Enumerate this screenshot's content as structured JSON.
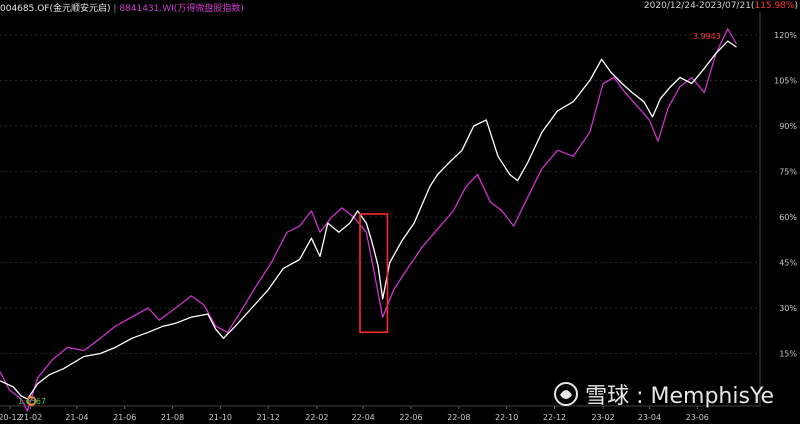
{
  "header": {
    "series1_label": "004685.OF(金元顺安元启)",
    "separator": "|",
    "series2_label": "8841431.WI(万得微盘股指数)",
    "date_range": "2020/12/24-2023/07/21",
    "change_pct": "115.98%"
  },
  "watermark": {
    "text": "雪球 : MemphisYe",
    "icon": "xueqiu-logo-icon"
  },
  "colors": {
    "background": "#000000",
    "series1": "#ffffff",
    "series2": "#cc33cc",
    "highlight": "#ff2a2a",
    "grid": "#2a2a2a",
    "axis_text": "#c8c8c8"
  },
  "chart_data": {
    "type": "line",
    "x_ticks": [
      "20-12",
      "21-02",
      "21-04",
      "21-06",
      "21-08",
      "21-10",
      "21-12",
      "22-02",
      "22-04",
      "22-06",
      "22-08",
      "22-10",
      "22-12",
      "23-02",
      "23-04",
      "23-06"
    ],
    "y_ticks": [
      "15%",
      "30%",
      "45%",
      "60%",
      "75%",
      "90%",
      "105%",
      "120%"
    ],
    "ylim": [
      0,
      125
    ],
    "start_label": "1.6567",
    "end_label": "3.9943",
    "series": [
      {
        "name": "004685.OF(金元顺安元启)",
        "color": "#ffffff",
        "points": [
          [
            "2020-12-24",
            6
          ],
          [
            "2021-01-10",
            4
          ],
          [
            "2021-01-20",
            1
          ],
          [
            "2021-01-28",
            0
          ],
          [
            "2021-02-10",
            5
          ],
          [
            "2021-02-25",
            8
          ],
          [
            "2021-03-15",
            10
          ],
          [
            "2021-04-10",
            14
          ],
          [
            "2021-05-01",
            15
          ],
          [
            "2021-05-20",
            17
          ],
          [
            "2021-06-10",
            20
          ],
          [
            "2021-07-01",
            22
          ],
          [
            "2021-07-20",
            24
          ],
          [
            "2021-08-05",
            25
          ],
          [
            "2021-08-25",
            27
          ],
          [
            "2021-09-15",
            28
          ],
          [
            "2021-09-25",
            23
          ],
          [
            "2021-10-05",
            20
          ],
          [
            "2021-10-20",
            24
          ],
          [
            "2021-11-10",
            30
          ],
          [
            "2021-12-01",
            36
          ],
          [
            "2021-12-20",
            43
          ],
          [
            "2022-01-10",
            46
          ],
          [
            "2022-01-25",
            53
          ],
          [
            "2022-02-05",
            47
          ],
          [
            "2022-02-15",
            58
          ],
          [
            "2022-03-01",
            55
          ],
          [
            "2022-03-15",
            58
          ],
          [
            "2022-03-25",
            62
          ],
          [
            "2022-04-05",
            58
          ],
          [
            "2022-04-12",
            52
          ],
          [
            "2022-04-20",
            44
          ],
          [
            "2022-04-26",
            33
          ],
          [
            "2022-05-05",
            45
          ],
          [
            "2022-05-20",
            52
          ],
          [
            "2022-06-05",
            58
          ],
          [
            "2022-06-25",
            70
          ],
          [
            "2022-07-05",
            74
          ],
          [
            "2022-07-20",
            78
          ],
          [
            "2022-08-05",
            82
          ],
          [
            "2022-08-20",
            90
          ],
          [
            "2022-09-05",
            92
          ],
          [
            "2022-09-20",
            80
          ],
          [
            "2022-10-05",
            74
          ],
          [
            "2022-10-15",
            72
          ],
          [
            "2022-10-28",
            78
          ],
          [
            "2022-11-15",
            88
          ],
          [
            "2022-12-05",
            95
          ],
          [
            "2022-12-25",
            98
          ],
          [
            "2023-01-15",
            105
          ],
          [
            "2023-01-30",
            112
          ],
          [
            "2023-02-10",
            108
          ],
          [
            "2023-02-25",
            104
          ],
          [
            "2023-03-10",
            101
          ],
          [
            "2023-03-25",
            98
          ],
          [
            "2023-04-05",
            93
          ],
          [
            "2023-04-15",
            99
          ],
          [
            "2023-04-28",
            103
          ],
          [
            "2023-05-10",
            106
          ],
          [
            "2023-05-25",
            104
          ],
          [
            "2023-06-10",
            109
          ],
          [
            "2023-06-25",
            114
          ],
          [
            "2023-07-10",
            118
          ],
          [
            "2023-07-21",
            116
          ]
        ]
      },
      {
        "name": "8841431.WI(万得微盘股指数)",
        "color": "#cc33cc",
        "points": [
          [
            "2020-12-24",
            9
          ],
          [
            "2021-01-05",
            3
          ],
          [
            "2021-01-20",
            0
          ],
          [
            "2021-01-28",
            -4
          ],
          [
            "2021-02-10",
            7
          ],
          [
            "2021-03-01",
            13
          ],
          [
            "2021-03-20",
            17
          ],
          [
            "2021-04-10",
            16
          ],
          [
            "2021-05-01",
            20
          ],
          [
            "2021-05-20",
            24
          ],
          [
            "2021-06-10",
            27
          ],
          [
            "2021-07-01",
            30
          ],
          [
            "2021-07-15",
            26
          ],
          [
            "2021-08-05",
            30
          ],
          [
            "2021-08-25",
            34
          ],
          [
            "2021-09-10",
            31
          ],
          [
            "2021-09-25",
            24
          ],
          [
            "2021-10-10",
            22
          ],
          [
            "2021-10-25",
            28
          ],
          [
            "2021-11-15",
            37
          ],
          [
            "2021-12-05",
            45
          ],
          [
            "2021-12-25",
            55
          ],
          [
            "2022-01-10",
            57
          ],
          [
            "2022-01-25",
            62
          ],
          [
            "2022-02-05",
            55
          ],
          [
            "2022-02-20",
            60
          ],
          [
            "2022-03-05",
            63
          ],
          [
            "2022-03-20",
            60
          ],
          [
            "2022-04-05",
            55
          ],
          [
            "2022-04-15",
            42
          ],
          [
            "2022-04-26",
            27
          ],
          [
            "2022-05-10",
            36
          ],
          [
            "2022-05-25",
            42
          ],
          [
            "2022-06-15",
            50
          ],
          [
            "2022-07-05",
            56
          ],
          [
            "2022-07-25",
            62
          ],
          [
            "2022-08-10",
            70
          ],
          [
            "2022-08-25",
            74
          ],
          [
            "2022-09-10",
            65
          ],
          [
            "2022-09-25",
            62
          ],
          [
            "2022-10-10",
            57
          ],
          [
            "2022-10-25",
            65
          ],
          [
            "2022-11-15",
            76
          ],
          [
            "2022-12-05",
            82
          ],
          [
            "2022-12-25",
            80
          ],
          [
            "2023-01-15",
            88
          ],
          [
            "2023-02-01",
            104
          ],
          [
            "2023-02-15",
            106
          ],
          [
            "2023-03-01",
            101
          ],
          [
            "2023-03-15",
            97
          ],
          [
            "2023-04-01",
            92
          ],
          [
            "2023-04-12",
            85
          ],
          [
            "2023-04-25",
            96
          ],
          [
            "2023-05-10",
            103
          ],
          [
            "2023-05-25",
            106
          ],
          [
            "2023-06-10",
            101
          ],
          [
            "2023-06-25",
            114
          ],
          [
            "2023-07-10",
            122
          ],
          [
            "2023-07-21",
            117
          ]
        ]
      }
    ],
    "highlight_box": {
      "x_start": "2022-03-28",
      "x_end": "2022-05-02",
      "y_range": [
        22,
        61
      ]
    }
  }
}
